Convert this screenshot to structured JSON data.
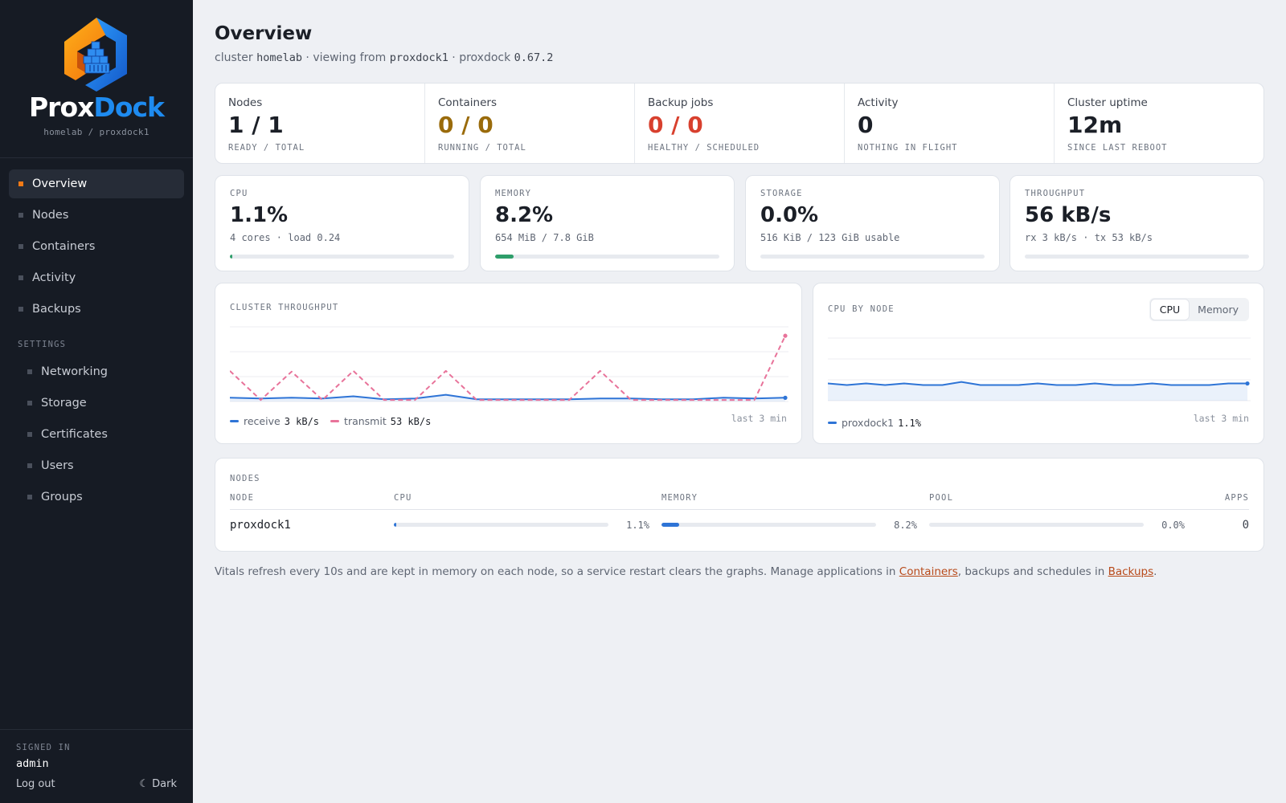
{
  "brand": {
    "name_part1": "Prox",
    "name_part2": "Dock",
    "context": "homelab / proxdock1"
  },
  "nav": {
    "items": [
      {
        "label": "Overview",
        "active": true
      },
      {
        "label": "Nodes"
      },
      {
        "label": "Containers"
      },
      {
        "label": "Activity"
      },
      {
        "label": "Backups"
      }
    ],
    "settings_label": "SETTINGS",
    "settings_items": [
      {
        "label": "Networking"
      },
      {
        "label": "Storage"
      },
      {
        "label": "Certificates"
      },
      {
        "label": "Users"
      },
      {
        "label": "Groups"
      }
    ]
  },
  "footer": {
    "signed_in_label": "SIGNED IN",
    "user": "admin",
    "logout": "Log out",
    "theme_icon": "☾",
    "theme_label": "Dark"
  },
  "header": {
    "title": "Overview",
    "sub_cluster_prefix": "cluster ",
    "cluster": "homelab",
    "sub_viewing": " · viewing from ",
    "node": "proxdock1",
    "sub_version_prefix": " · proxdock ",
    "version": "0.67.2"
  },
  "summary": [
    {
      "label": "Nodes",
      "value": "1 / 1",
      "sub": "READY / TOTAL",
      "tone": ""
    },
    {
      "label": "Containers",
      "value": "0 / 0",
      "sub": "RUNNING / TOTAL",
      "tone": "amber"
    },
    {
      "label": "Backup jobs",
      "value": "0 / 0",
      "sub": "HEALTHY / SCHEDULED",
      "tone": "red"
    },
    {
      "label": "Activity",
      "value": "0",
      "sub": "NOTHING IN FLIGHT",
      "tone": ""
    },
    {
      "label": "Cluster uptime",
      "value": "12m",
      "sub": "SINCE LAST REBOOT",
      "tone": ""
    }
  ],
  "metrics": [
    {
      "label": "CPU",
      "value": "1.1%",
      "sub": "4 cores · load 0.24",
      "fill": 0.011,
      "color": "#2e9e6a"
    },
    {
      "label": "MEMORY",
      "value": "8.2%",
      "sub": "654 MiB / 7.8 GiB",
      "fill": 0.082,
      "color": "#2e9e6a"
    },
    {
      "label": "STORAGE",
      "value": "0.0%",
      "sub": "516 KiB / 123 GiB usable",
      "fill": 0.0,
      "color": "#2e9e6a"
    },
    {
      "label": "THROUGHPUT",
      "value": "56 kB/s",
      "sub": "rx 3 kB/s · tx 53 kB/s",
      "fill": 0.0,
      "color": "#2e74d6"
    }
  ],
  "throughput": {
    "title": "CLUSTER THROUGHPUT",
    "receive_label": "receive",
    "receive_value": "3 kB/s",
    "transmit_label": "transmit",
    "transmit_value": "53 kB/s",
    "window": "last 3 min",
    "receive_color": "#2e74d6",
    "transmit_color": "#e8739a"
  },
  "cpu_by_node": {
    "title": "CPU BY NODE",
    "toggle": [
      "CPU",
      "Memory"
    ],
    "node_label": "proxdock1",
    "node_value": "1.1%",
    "window": "last 3 min",
    "color": "#2e74d6"
  },
  "chart_data": [
    {
      "type": "line",
      "title": "CLUSTER THROUGHPUT",
      "series": [
        {
          "name": "receive",
          "values": [
            5,
            4,
            5,
            4,
            7,
            3,
            4,
            9,
            3,
            3,
            3,
            3,
            4,
            4,
            3,
            3,
            5,
            4,
            5
          ]
        },
        {
          "name": "transmit",
          "values": [
            41,
            2,
            40,
            2,
            41,
            2,
            2,
            41,
            2,
            2,
            2,
            2,
            41,
            2,
            2,
            2,
            2,
            2,
            88
          ]
        }
      ],
      "ylim": [
        0,
        100
      ]
    },
    {
      "type": "line",
      "title": "CPU BY NODE",
      "series": [
        {
          "name": "proxdock1",
          "values": [
            1.1,
            1.0,
            1.1,
            1.0,
            1.1,
            1.0,
            1.0,
            1.2,
            1.0,
            1.0,
            1.0,
            1.1,
            1.0,
            1.0,
            1.1,
            1.0,
            1.0,
            1.1,
            1.0,
            1.0,
            1.0,
            1.1,
            1.1
          ]
        }
      ],
      "ylim": [
        0,
        4
      ]
    }
  ],
  "nodes": {
    "title": "NODES",
    "columns": [
      "NODE",
      "CPU",
      "MEMORY",
      "POOL",
      "APPS"
    ],
    "rows": [
      {
        "node": "proxdock1",
        "cpu": "1.1%",
        "cpu_fill": 0.011,
        "memory": "8.2%",
        "memory_fill": 0.082,
        "pool": "0.0%",
        "pool_fill": 0.0,
        "apps": "0"
      }
    ]
  },
  "footnote": {
    "text1": "Vitals refresh every 10s and are kept in memory on each node, so a service restart clears the graphs. Manage applications in ",
    "link1": "Containers",
    "text2": ", backups and schedules in ",
    "link2": "Backups",
    "text3": "."
  }
}
